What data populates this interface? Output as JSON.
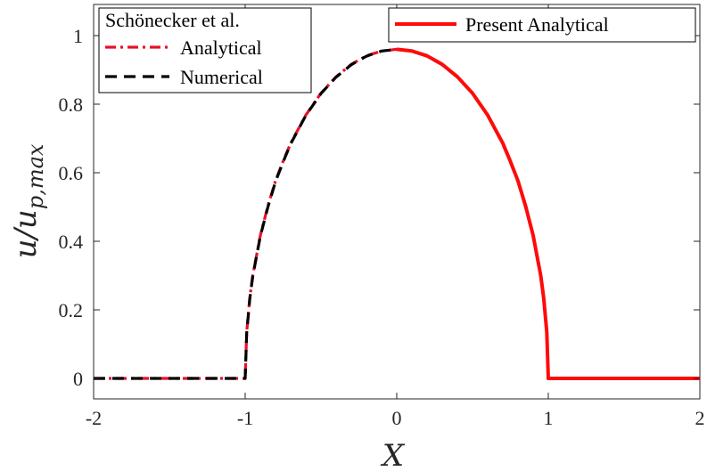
{
  "chart_data": {
    "type": "line",
    "title": "",
    "xlabel": "X",
    "ylabel": "u/u",
    "ylabel_sub": "p,max",
    "xlim": [
      -2,
      2
    ],
    "ylim": [
      0,
      1.05
    ],
    "xticks": [
      -2,
      -1,
      0,
      1,
      2
    ],
    "yticks": [
      0,
      0.2,
      0.4,
      0.6,
      0.8,
      1
    ],
    "xtick_labels": [
      "-2",
      "-1",
      "0",
      "1",
      "2"
    ],
    "ytick_labels": [
      "0",
      "0.2",
      "0.4",
      "0.6",
      "0.8",
      "1"
    ],
    "grid": false,
    "legends": [
      {
        "placement": "top-left",
        "title": "Schönecker et al.",
        "entries": [
          "Analytical",
          "Numerical"
        ]
      },
      {
        "placement": "top-right",
        "entries": [
          "Present Analytical"
        ]
      }
    ],
    "series": [
      {
        "name": "Analytical",
        "legend": 0,
        "color": "#e8102a",
        "dash": "dashdot",
        "x": [
          -2,
          -1.5,
          -1,
          -0.99,
          -0.97,
          -0.95,
          -0.9,
          -0.85,
          -0.8,
          -0.75,
          -0.7,
          -0.6,
          -0.5,
          -0.4,
          -0.3,
          -0.2,
          -0.1,
          0,
          0.1,
          0.2,
          0.3,
          0.4,
          0.5,
          0.6,
          0.7,
          0.75,
          0.8,
          0.85,
          0.9,
          0.95,
          0.97,
          0.99,
          1,
          1.5,
          2
        ],
        "y": [
          0,
          0,
          0,
          0.135,
          0.233,
          0.3,
          0.417,
          0.503,
          0.576,
          0.633,
          0.686,
          0.768,
          0.832,
          0.88,
          0.916,
          0.941,
          0.955,
          0.96,
          0.955,
          0.941,
          0.916,
          0.88,
          0.832,
          0.768,
          0.686,
          0.633,
          0.576,
          0.503,
          0.417,
          0.3,
          0.233,
          0.135,
          0,
          0,
          0
        ]
      },
      {
        "name": "Numerical",
        "legend": 0,
        "color": "#000000",
        "dash": "dashed",
        "x": [
          -2,
          -1.5,
          -1,
          -0.99,
          -0.97,
          -0.95,
          -0.9,
          -0.85,
          -0.8,
          -0.75,
          -0.7,
          -0.6,
          -0.5,
          -0.4,
          -0.3,
          -0.2,
          -0.1,
          0,
          0.1,
          0.2,
          0.3,
          0.4,
          0.5,
          0.6,
          0.7,
          0.75,
          0.8,
          0.85,
          0.9,
          0.95,
          0.97,
          0.99,
          1,
          1.5,
          2
        ],
        "y": [
          0,
          0,
          0,
          0.133,
          0.23,
          0.298,
          0.415,
          0.5,
          0.574,
          0.631,
          0.684,
          0.767,
          0.831,
          0.879,
          0.915,
          0.94,
          0.955,
          0.96,
          0.955,
          0.94,
          0.915,
          0.879,
          0.831,
          0.767,
          0.684,
          0.631,
          0.574,
          0.5,
          0.415,
          0.298,
          0.23,
          0.133,
          0,
          0,
          0
        ]
      },
      {
        "name": "Present Analytical",
        "legend": 1,
        "color": "#ff0a0a",
        "dash": "solid",
        "x": [
          0,
          0.1,
          0.2,
          0.3,
          0.4,
          0.5,
          0.6,
          0.7,
          0.75,
          0.8,
          0.85,
          0.9,
          0.95,
          0.97,
          0.99,
          1,
          1.5,
          2
        ],
        "y": [
          0.96,
          0.955,
          0.941,
          0.916,
          0.88,
          0.832,
          0.768,
          0.686,
          0.633,
          0.576,
          0.503,
          0.417,
          0.3,
          0.233,
          0.135,
          0,
          0,
          0
        ]
      }
    ]
  }
}
